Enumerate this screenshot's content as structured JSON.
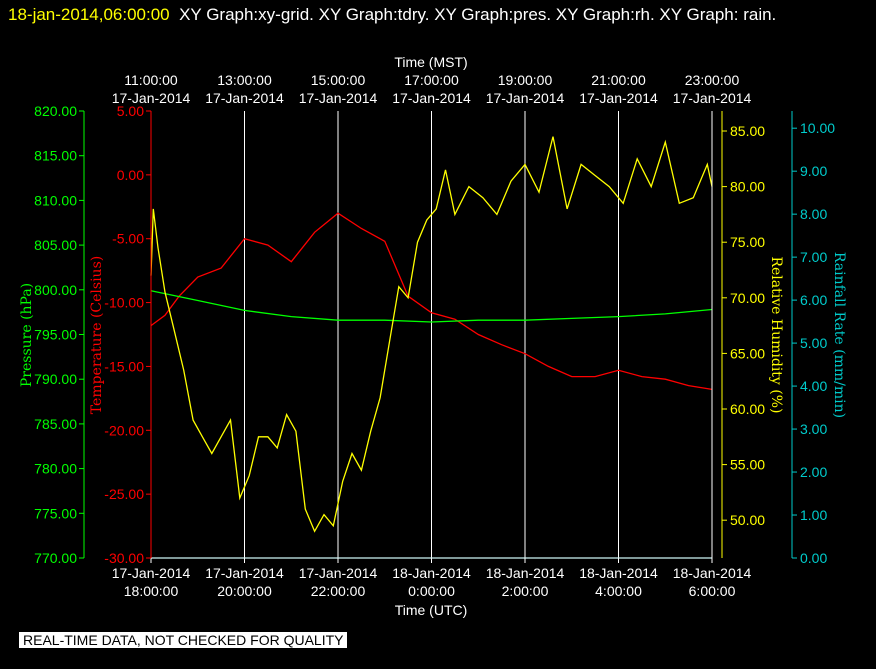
{
  "header": {
    "timestamp": "18-jan-2014,06:00:00",
    "titles": "XY Graph:xy-grid.  XY Graph:tdry.  XY Graph:pres.  XY Graph:rh.  XY Graph: rain."
  },
  "footer_note": "REAL-TIME DATA, NOT CHECKED FOR QUALITY",
  "colors": {
    "background": "#000000",
    "grid": "#ffffff",
    "temperature": "#ff0000",
    "pressure": "#00ff00",
    "humidity": "#ffff00",
    "rain": "#00cccc",
    "frame": "#ffffff"
  },
  "chart_data": {
    "type": "line",
    "grid": true,
    "x_top": {
      "label": "Time (MST)",
      "ticks": [
        {
          "time": "11:00:00",
          "date": "17-Jan-2014"
        },
        {
          "time": "13:00:00",
          "date": "17-Jan-2014"
        },
        {
          "time": "15:00:00",
          "date": "17-Jan-2014"
        },
        {
          "time": "17:00:00",
          "date": "17-Jan-2014"
        },
        {
          "time": "19:00:00",
          "date": "17-Jan-2014"
        },
        {
          "time": "21:00:00",
          "date": "17-Jan-2014"
        },
        {
          "time": "23:00:00",
          "date": "17-Jan-2014"
        }
      ]
    },
    "x_bottom": {
      "label": "Time (UTC)",
      "range": [
        "17-Jan-2014 18:00:00",
        "18-Jan-2014 6:00:00"
      ],
      "ticks": [
        {
          "date": "17-Jan-2014",
          "time": "18:00:00"
        },
        {
          "date": "17-Jan-2014",
          "time": "20:00:00"
        },
        {
          "date": "17-Jan-2014",
          "time": "22:00:00"
        },
        {
          "date": "18-Jan-2014",
          "time": "0:00:00"
        },
        {
          "date": "18-Jan-2014",
          "time": "2:00:00"
        },
        {
          "date": "18-Jan-2014",
          "time": "4:00:00"
        },
        {
          "date": "18-Jan-2014",
          "time": "6:00:00"
        }
      ]
    },
    "axes": {
      "pressure": {
        "label": "Pressure (hPa)",
        "range": [
          770,
          820
        ],
        "ticks": [
          "770.00",
          "775.00",
          "780.00",
          "785.00",
          "790.00",
          "795.00",
          "800.00",
          "805.00",
          "810.00",
          "815.00",
          "820.00"
        ]
      },
      "temperature": {
        "label": "Temperature (Celsius)",
        "range": [
          -30,
          5
        ],
        "ticks": [
          "-30.00",
          "-25.00",
          "-20.00",
          "-15.00",
          "-10.00",
          "-5.00",
          "0.00",
          "5.00"
        ]
      },
      "humidity": {
        "label": "Relative Humidity (%)",
        "range": [
          46.6,
          86.8
        ],
        "ticks": [
          "50.00",
          "55.00",
          "60.00",
          "65.00",
          "70.00",
          "75.00",
          "80.00",
          "85.00"
        ]
      },
      "rain": {
        "label": "Rainfall Rate (mm/min)",
        "range": [
          0,
          10.4
        ],
        "ticks": [
          "0.00",
          "1.00",
          "2.00",
          "3.00",
          "4.00",
          "5.00",
          "6.00",
          "7.00",
          "8.00",
          "9.00",
          "10.00"
        ]
      }
    },
    "series": [
      {
        "key": "temperature",
        "axis": "temperature",
        "x_hours": [
          0,
          0.3,
          0.6,
          1.0,
          1.5,
          2.0,
          2.5,
          3.0,
          3.5,
          4.0,
          4.5,
          5.0,
          5.5,
          6.0,
          6.5,
          7.0,
          7.5,
          8.0,
          8.5,
          9.0,
          9.5,
          10.0,
          10.5,
          11.0,
          11.5,
          12.0
        ],
        "values": [
          -11.8,
          -11.0,
          -9.5,
          -8.0,
          -7.3,
          -5.0,
          -5.5,
          -6.8,
          -4.5,
          -3.0,
          -4.2,
          -5.2,
          -9.5,
          -10.8,
          -11.3,
          -12.5,
          -13.3,
          -14.0,
          -15.0,
          -15.8,
          -15.8,
          -15.3,
          -15.8,
          -16.0,
          -16.5,
          -16.8
        ]
      },
      {
        "key": "pressure",
        "axis": "pressure",
        "x_hours": [
          0,
          1,
          2,
          3,
          4,
          5,
          6,
          7,
          8,
          9,
          10,
          11,
          12
        ],
        "values": [
          799.9,
          798.8,
          797.7,
          797.0,
          796.6,
          796.6,
          796.4,
          796.6,
          796.6,
          796.8,
          797.0,
          797.3,
          797.8
        ]
      },
      {
        "key": "humidity",
        "axis": "humidity",
        "x_hours": [
          0,
          0.05,
          0.15,
          0.3,
          0.5,
          0.7,
          0.9,
          1.1,
          1.3,
          1.5,
          1.7,
          1.9,
          2.1,
          2.3,
          2.5,
          2.7,
          2.9,
          3.1,
          3.3,
          3.5,
          3.7,
          3.9,
          4.1,
          4.3,
          4.5,
          4.7,
          4.9,
          5.1,
          5.3,
          5.5,
          5.7,
          5.9,
          6.1,
          6.3,
          6.5,
          6.8,
          7.1,
          7.4,
          7.7,
          8.0,
          8.3,
          8.6,
          8.9,
          9.2,
          9.5,
          9.8,
          10.1,
          10.4,
          10.7,
          11.0,
          11.3,
          11.6,
          11.9,
          12.0
        ],
        "values": [
          72.0,
          78.0,
          74.5,
          70.5,
          67.0,
          63.5,
          59.0,
          57.5,
          56.0,
          57.5,
          59.0,
          52.0,
          54.0,
          57.5,
          57.5,
          56.5,
          59.5,
          58.0,
          51.0,
          49.0,
          50.5,
          49.5,
          53.5,
          56.0,
          54.5,
          58.0,
          61.0,
          66.0,
          71.0,
          70.0,
          75.0,
          77.0,
          78.0,
          81.5,
          77.5,
          80.0,
          79.0,
          77.5,
          80.5,
          82.0,
          79.5,
          84.5,
          78.0,
          82.0,
          81.0,
          80.0,
          78.5,
          82.5,
          80.0,
          84.0,
          78.5,
          79.0,
          82.0,
          80.0
        ]
      },
      {
        "key": "rain",
        "axis": "rain",
        "x_hours": [
          0,
          12
        ],
        "values": [
          0,
          0
        ]
      }
    ]
  }
}
